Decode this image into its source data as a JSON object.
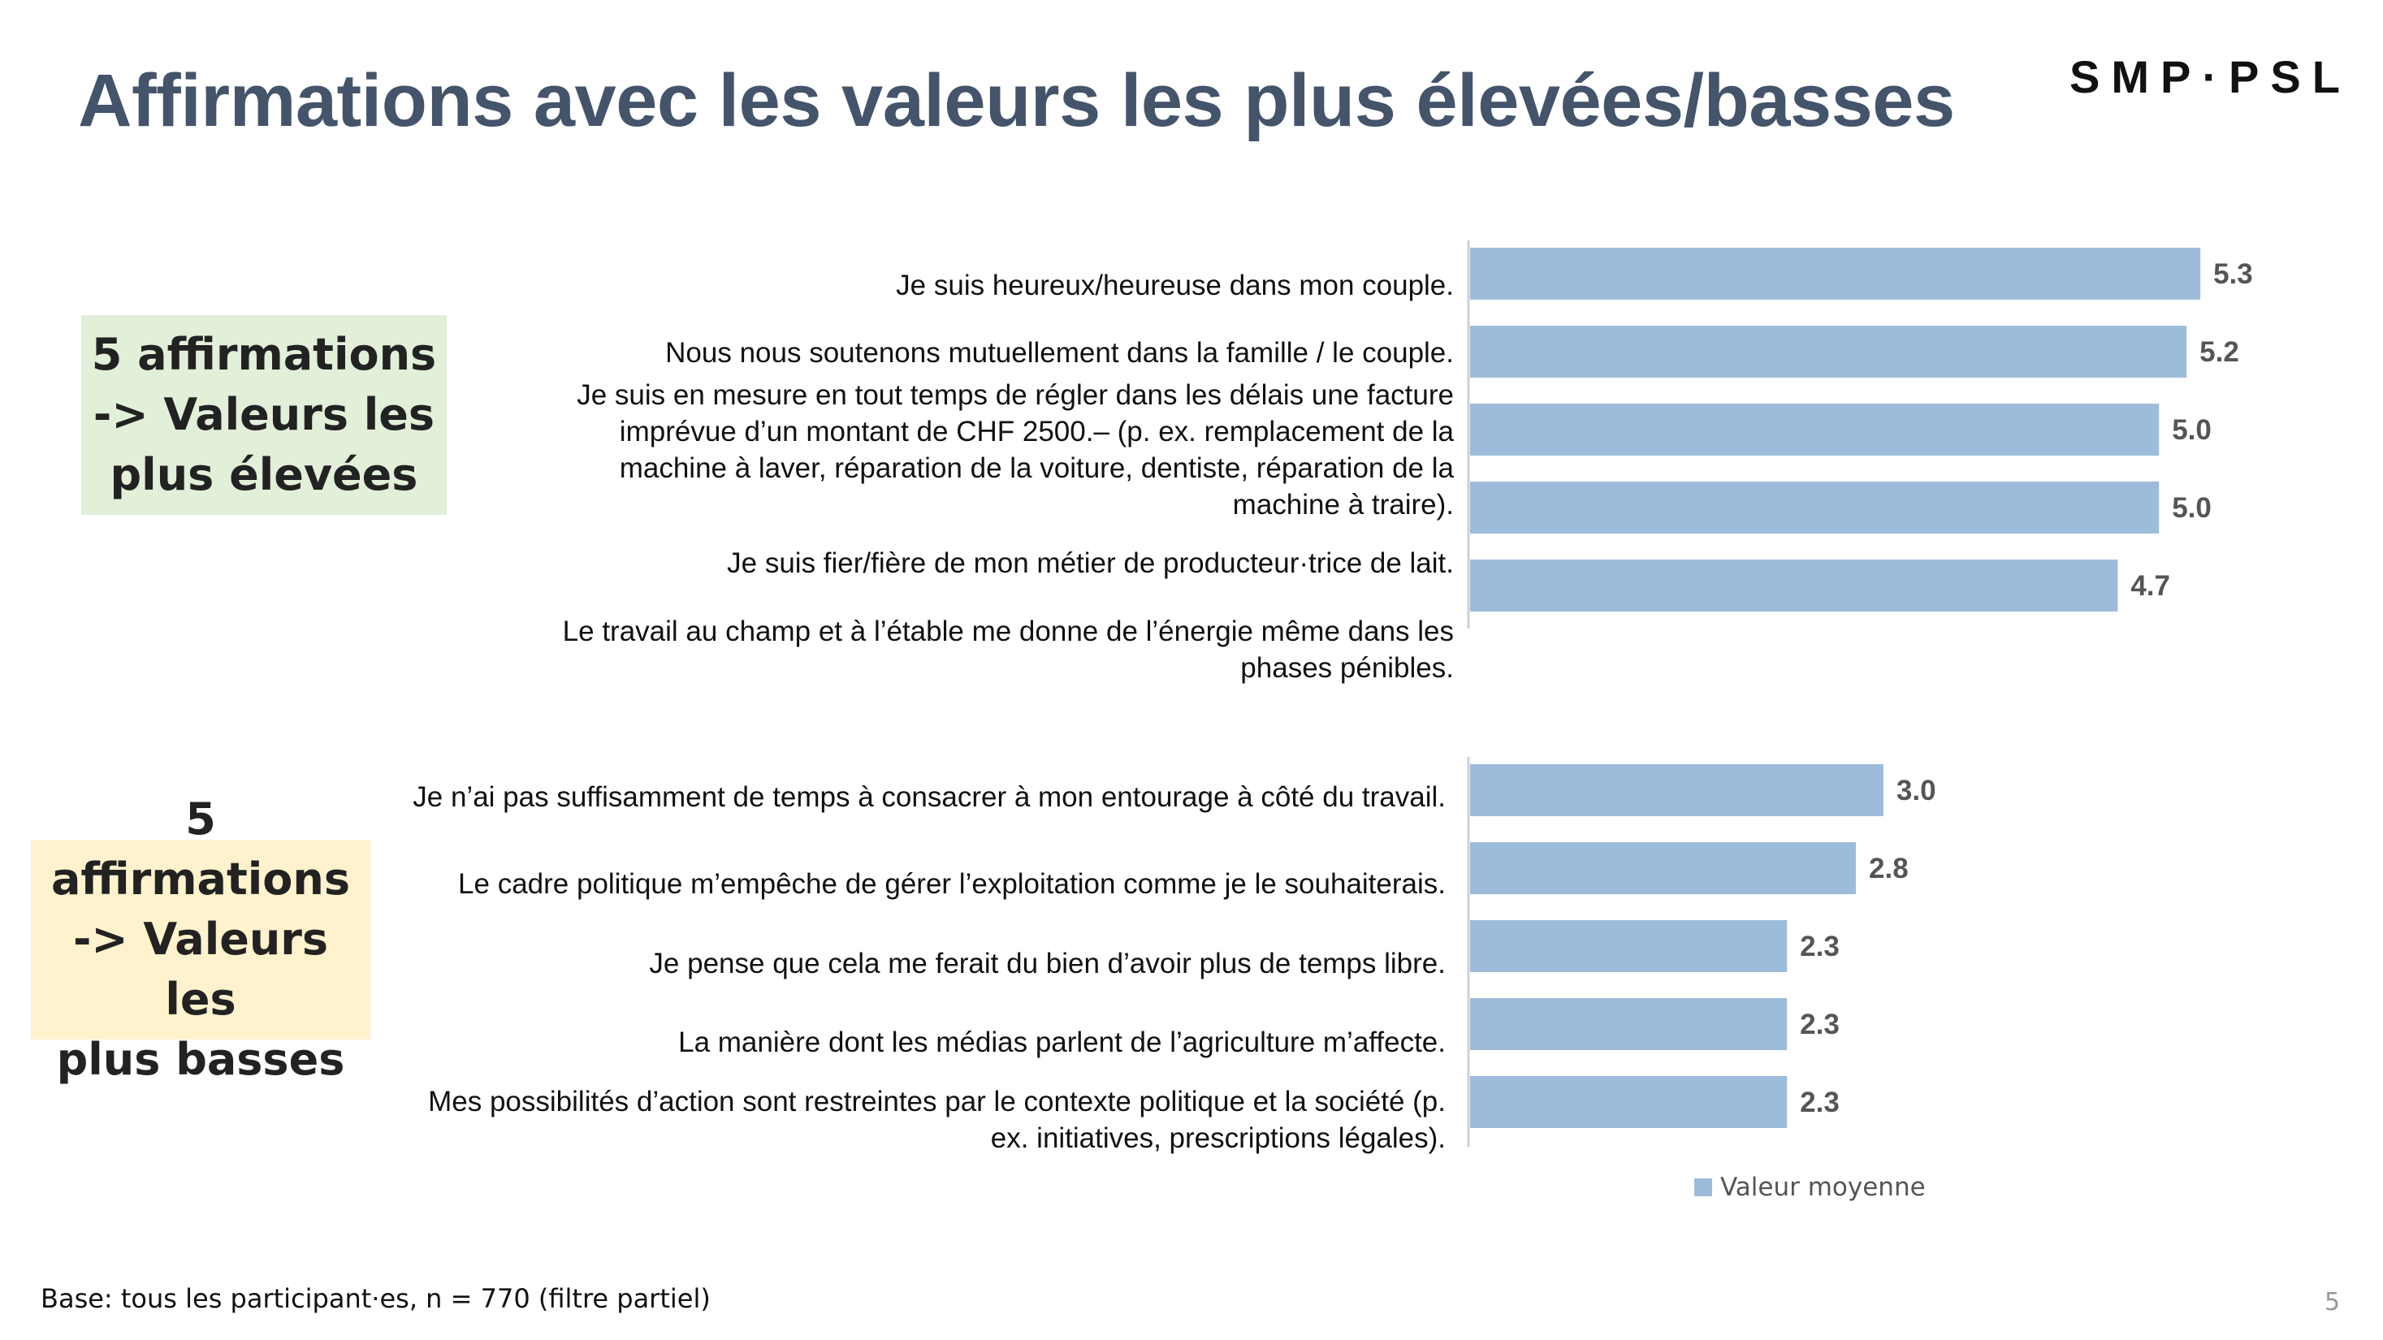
{
  "slide": {
    "title": "Affirmations avec les valeurs les plus élevées/basses",
    "logo": "SMP·PSL",
    "box_high": [
      "5 affirmations",
      "-> Valeurs les",
      "plus élevées"
    ],
    "box_low": [
      "5 affirmations",
      "-> Valeurs les",
      "plus basses"
    ],
    "base_note": "Base: tous les participant·es, n = 770 (filtre partiel)",
    "page_number": "5"
  },
  "colors": {
    "title": "#44546a",
    "bar": "#9dbcdc",
    "box_high_bg": "#e2efd9",
    "box_low_bg": "#fff2cc"
  },
  "chart_data": [
    {
      "type": "bar",
      "orientation": "horizontal",
      "group": "Valeurs les plus élevées",
      "categories": [
        [
          "Je suis heureux/heureuse dans mon couple."
        ],
        [
          "Nous nous soutenons mutuellement dans la famille / le couple."
        ],
        [
          "Je suis en mesure en tout temps de régler dans les délais une facture",
          "imprévue d’un montant de CHF 2500.– (p. ex. remplacement de la",
          "machine à laver, réparation de la voiture, dentiste, réparation de la",
          "machine à traire)."
        ],
        [
          "Je suis fier/fière de mon métier de producteur·trice de lait."
        ],
        [
          "Le travail au champ et à l’étable me donne de l’énergie même dans les",
          "phases pénibles."
        ]
      ],
      "series": [
        {
          "name": "Valeur moyenne",
          "values": [
            5.3,
            5.2,
            5.0,
            5.0,
            4.7
          ],
          "labels": [
            "5.3",
            "5.2",
            "5.0",
            "5.0",
            "4.7"
          ]
        }
      ],
      "xlim": [
        0,
        5.6
      ]
    },
    {
      "type": "bar",
      "orientation": "horizontal",
      "group": "Valeurs les plus basses",
      "categories": [
        [
          "Je n’ai pas suffisamment de temps à consacrer à mon entourage à côté du travail."
        ],
        [
          "Le cadre politique m’empêche de gérer l’exploitation comme je le souhaiterais."
        ],
        [
          "Je pense que cela me ferait du bien d’avoir plus de temps libre."
        ],
        [
          "La manière dont les médias parlent de l’agriculture m’affecte."
        ],
        [
          "Mes possibilités d’action sont restreintes par le contexte politique et la société (p.",
          "ex. initiatives, prescriptions légales)."
        ]
      ],
      "series": [
        {
          "name": "Valeur moyenne",
          "values": [
            3.0,
            2.8,
            2.3,
            2.3,
            2.3
          ],
          "labels": [
            "3.0",
            "2.8",
            "2.3",
            "2.3",
            "2.3"
          ]
        }
      ],
      "xlim": [
        0,
        5.6
      ]
    }
  ],
  "legend": {
    "label": "Valeur moyenne"
  }
}
